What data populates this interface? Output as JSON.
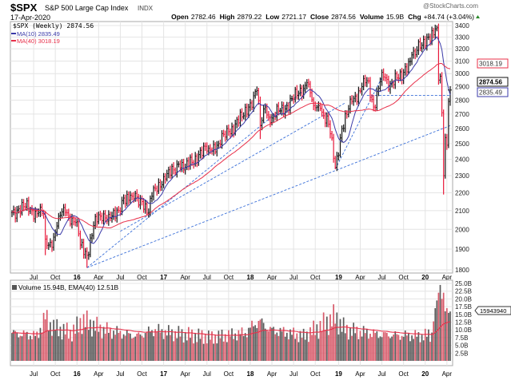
{
  "header": {
    "symbol": "$SPX",
    "name": "S&P 500 Large Cap Index",
    "exchange": "INDX",
    "date": "17-Apr-2020",
    "watermark": "@StockCharts.com",
    "open_label": "Open",
    "open": "2782.46",
    "high_label": "High",
    "high": "2879.22",
    "low_label": "Low",
    "low": "2721.17",
    "close_label": "Close",
    "close": "2874.56",
    "volume_label": "Volume",
    "volume": "15.9B",
    "chg_label": "Chg",
    "chg": "+84.74 (+3.04%)",
    "chg_icon": "triangle-up-icon"
  },
  "legend": {
    "price": "$SPX (Weekly) 2874.56",
    "ma10": "MA(10) 2835.49",
    "ma40": "MA(40) 3018.19",
    "volume": "Volume 15.94B, EMA(40) 12.51B"
  },
  "tags": {
    "close": "2874.56",
    "ma10": "2835.49",
    "ma40": "3018.19",
    "volume": "15943940"
  },
  "colors": {
    "up": "#111111",
    "down": "#e8183a",
    "ma10": "#3a3aa8",
    "ma40": "#e8304a",
    "trend": "#3a6fd8",
    "vol_up": "#5a5a5a",
    "vol_down": "#d85a6a",
    "grid": "#e4e4e4"
  },
  "chart_data": [
    {
      "type": "candlestick",
      "title": "$SPX (Weekly)",
      "scale": "log",
      "ylim": [
        1800,
        3400
      ],
      "yticks": [
        1800,
        1900,
        2000,
        2100,
        2200,
        2300,
        2400,
        2500,
        2600,
        2700,
        2800,
        2900,
        3000,
        3100,
        3200,
        3300,
        3400
      ],
      "x_unit": "weeks since 2015-04-03",
      "x_range": [
        0,
        263
      ],
      "xticks": [
        {
          "w": 13,
          "label": "Jul"
        },
        {
          "w": 26,
          "label": "Oct"
        },
        {
          "w": 39,
          "label": "16",
          "bold": true
        },
        {
          "w": 52,
          "label": "Apr"
        },
        {
          "w": 65,
          "label": "Jul"
        },
        {
          "w": 78,
          "label": "Oct"
        },
        {
          "w": 91,
          "label": "17",
          "bold": true
        },
        {
          "w": 104,
          "label": "Apr"
        },
        {
          "w": 117,
          "label": "Jul"
        },
        {
          "w": 130,
          "label": "Oct"
        },
        {
          "w": 143,
          "label": "18",
          "bold": true
        },
        {
          "w": 156,
          "label": "Apr"
        },
        {
          "w": 169,
          "label": "Jul"
        },
        {
          "w": 182,
          "label": "Oct"
        },
        {
          "w": 196,
          "label": "19",
          "bold": true
        },
        {
          "w": 209,
          "label": "Apr"
        },
        {
          "w": 222,
          "label": "Jul"
        },
        {
          "w": 235,
          "label": "Oct"
        },
        {
          "w": 248,
          "label": "20",
          "bold": true
        },
        {
          "w": 261,
          "label": "Apr"
        }
      ],
      "close_anchors": [
        [
          0,
          2090
        ],
        [
          4,
          2110
        ],
        [
          8,
          2120
        ],
        [
          12,
          2100
        ],
        [
          16,
          2090
        ],
        [
          19,
          2080
        ],
        [
          20,
          1950
        ],
        [
          22,
          1920
        ],
        [
          25,
          1960
        ],
        [
          28,
          2070
        ],
        [
          32,
          2090
        ],
        [
          36,
          2060
        ],
        [
          39,
          2040
        ],
        [
          41,
          1920
        ],
        [
          45,
          1870
        ],
        [
          49,
          2020
        ],
        [
          53,
          2070
        ],
        [
          58,
          2080
        ],
        [
          62,
          2060
        ],
        [
          64,
          2100
        ],
        [
          67,
          2170
        ],
        [
          72,
          2180
        ],
        [
          78,
          2150
        ],
        [
          82,
          2090
        ],
        [
          84,
          2180
        ],
        [
          88,
          2260
        ],
        [
          92,
          2280
        ],
        [
          100,
          2370
        ],
        [
          104,
          2350
        ],
        [
          112,
          2430
        ],
        [
          118,
          2470
        ],
        [
          124,
          2500
        ],
        [
          130,
          2580
        ],
        [
          138,
          2680
        ],
        [
          142,
          2750
        ],
        [
          147,
          2870
        ],
        [
          149,
          2620
        ],
        [
          152,
          2750
        ],
        [
          155,
          2640
        ],
        [
          160,
          2720
        ],
        [
          165,
          2760
        ],
        [
          172,
          2850
        ],
        [
          177,
          2930
        ],
        [
          181,
          2760
        ],
        [
          185,
          2740
        ],
        [
          190,
          2630
        ],
        [
          194,
          2350
        ],
        [
          198,
          2600
        ],
        [
          204,
          2790
        ],
        [
          210,
          2900
        ],
        [
          213,
          2945
        ],
        [
          217,
          2750
        ],
        [
          222,
          3010
        ],
        [
          226,
          2880
        ],
        [
          230,
          3000
        ],
        [
          234,
          2950
        ],
        [
          240,
          3150
        ],
        [
          246,
          3230
        ],
        [
          250,
          3300
        ],
        [
          255,
          3380
        ],
        [
          256,
          2950
        ],
        [
          257,
          2980
        ],
        [
          258,
          2710
        ],
        [
          259,
          2300
        ],
        [
          260,
          2540
        ],
        [
          261,
          2490
        ],
        [
          262,
          2790
        ],
        [
          263,
          2874.56
        ]
      ],
      "special_lows": [
        [
          20,
          1870
        ],
        [
          45,
          1810
        ],
        [
          149,
          2530
        ],
        [
          194,
          2340
        ],
        [
          259,
          2190
        ]
      ],
      "series": [
        {
          "name": "MA(10)",
          "period": 10
        },
        {
          "name": "MA(40)",
          "period": 40
        }
      ],
      "trendlines": [
        {
          "from": [
            45,
            1810
          ],
          "to": [
            263,
            2620
          ]
        },
        {
          "from": [
            45,
            1810
          ],
          "to": [
            177,
            2890
          ]
        },
        {
          "from": [
            65,
            1990
          ],
          "to": [
            200,
            2780
          ]
        },
        {
          "from": [
            194,
            2340
          ],
          "to": [
            222,
            2970
          ]
        },
        {
          "from": [
            213,
            2835
          ],
          "to": [
            263,
            2835
          ]
        }
      ]
    },
    {
      "type": "bar",
      "title": "Volume",
      "unit": "B",
      "ylim": [
        0,
        25
      ],
      "yticks": [
        "2.5B",
        "5.0B",
        "7.5B",
        "10.0B",
        "12.5B",
        "15.0B",
        "17.5B",
        "20.0B",
        "22.5B",
        "25.0B"
      ],
      "volume_anchors": [
        [
          0,
          9
        ],
        [
          15,
          8
        ],
        [
          20,
          14
        ],
        [
          24,
          11
        ],
        [
          35,
          9
        ],
        [
          38,
          10
        ],
        [
          42,
          13
        ],
        [
          46,
          12
        ],
        [
          55,
          10
        ],
        [
          65,
          9
        ],
        [
          75,
          8
        ],
        [
          85,
          10
        ],
        [
          95,
          9
        ],
        [
          120,
          7.5
        ],
        [
          140,
          9
        ],
        [
          148,
          13
        ],
        [
          155,
          10
        ],
        [
          175,
          8
        ],
        [
          185,
          11
        ],
        [
          194,
          14
        ],
        [
          200,
          10
        ],
        [
          220,
          8.5
        ],
        [
          245,
          8
        ],
        [
          252,
          8.5
        ],
        [
          254,
          17
        ],
        [
          256,
          22
        ],
        [
          257,
          24.5
        ],
        [
          258,
          20
        ],
        [
          259,
          22
        ],
        [
          260,
          16
        ],
        [
          261,
          17
        ],
        [
          262,
          15.5
        ],
        [
          263,
          15.94
        ]
      ],
      "ema_period": 40
    }
  ]
}
